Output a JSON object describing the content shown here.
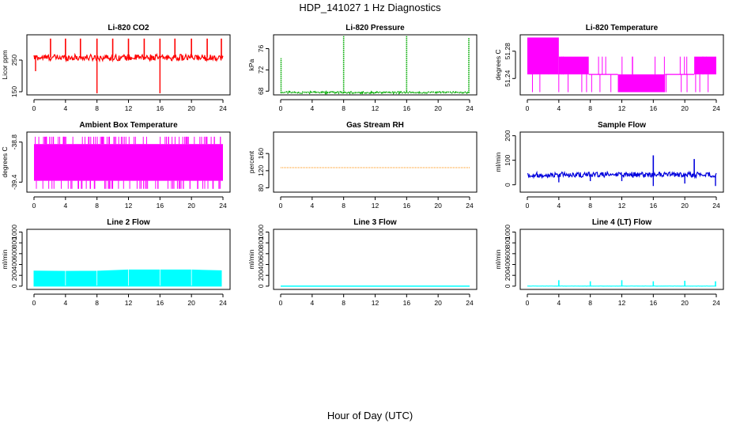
{
  "figure": {
    "title": "HDP_141027  1 Hz Diagnostics",
    "xlabel": "Hour of Day (UTC)"
  },
  "chart_data": [
    {
      "id": "co2",
      "type": "line",
      "title": "Li-820 CO2",
      "ylabel": "Licor ppm",
      "color": "#ff0000",
      "style": "noisy-spikes",
      "x_ticks": [
        "0",
        "4",
        "8",
        "12",
        "16",
        "20",
        "24"
      ],
      "xlim": [
        0,
        24
      ],
      "ylim": [
        140,
        330
      ],
      "y_ticks": [
        150,
        250
      ],
      "y_tick_labels": [
        "150",
        "250"
      ],
      "baseline": 258,
      "noise": [
        248,
        268
      ],
      "spikes_up": [
        [
          2.1,
          318
        ],
        [
          4,
          318
        ],
        [
          5.9,
          318
        ],
        [
          8,
          318
        ],
        [
          10,
          318
        ],
        [
          12,
          318
        ],
        [
          14,
          318
        ],
        [
          16,
          318
        ],
        [
          17.9,
          318
        ],
        [
          20,
          318
        ],
        [
          22,
          318
        ],
        [
          23.8,
          318
        ]
      ],
      "spikes_down": [
        [
          0.2,
          215
        ],
        [
          8,
          145
        ],
        [
          16,
          145
        ]
      ]
    },
    {
      "id": "pressure",
      "type": "line",
      "title": "Li-820 Pressure",
      "ylabel": "kPa",
      "color": "#00aa00",
      "style": "dotted-spikes",
      "x_ticks": [
        "0",
        "4",
        "8",
        "12",
        "16",
        "20",
        "24"
      ],
      "xlim": [
        0,
        24
      ],
      "ylim": [
        67.3,
        78.6
      ],
      "y_ticks": [
        68,
        72,
        76
      ],
      "y_tick_labels": [
        "68",
        "72",
        "76"
      ],
      "baseline": 67.7,
      "noise": [
        67.6,
        67.9
      ],
      "spikes_up": [
        [
          0.05,
          74.2
        ],
        [
          8,
          78.4
        ],
        [
          16,
          78.4
        ],
        [
          23.9,
          78.0
        ]
      ],
      "spikes_down": []
    },
    {
      "id": "li820temp",
      "type": "line",
      "title": "Li-820 Temperature",
      "ylabel": "degrees C",
      "color": "#ff00ff",
      "style": "quantized",
      "x_ticks": [
        "0",
        "4",
        "8",
        "12",
        "16",
        "20",
        "24"
      ],
      "xlim": [
        0,
        24
      ],
      "ylim": [
        51.216,
        51.304
      ],
      "y_ticks": [
        51.24,
        51.28
      ],
      "y_tick_labels": [
        "51.24",
        "51.28"
      ],
      "levels": [
        51.22,
        51.246,
        51.272,
        51.3
      ],
      "segments": [
        {
          "from": 0,
          "to": 4,
          "low": 51.246,
          "high": 51.3
        },
        {
          "from": 4,
          "to": 7.8,
          "low": 51.246,
          "high": 51.272
        },
        {
          "from": 7.8,
          "to": 11.5,
          "low": 51.246,
          "high": 51.246
        },
        {
          "from": 11.5,
          "to": 17.5,
          "low": 51.22,
          "high": 51.246
        },
        {
          "from": 17.5,
          "to": 21.2,
          "low": 51.246,
          "high": 51.246
        },
        {
          "from": 21.2,
          "to": 24,
          "low": 51.246,
          "high": 51.272
        }
      ]
    },
    {
      "id": "ambient",
      "type": "line",
      "title": "Ambient Box Temperature",
      "ylabel": "degrees C",
      "color": "#ff00ff",
      "style": "dense-band",
      "x_ticks": [
        "0",
        "4",
        "8",
        "12",
        "16",
        "20",
        "24"
      ],
      "xlim": [
        0,
        24
      ],
      "ylim": [
        -39.55,
        -38.65
      ],
      "y_ticks": [
        -39.4,
        -38.8
      ],
      "y_tick_labels": [
        "-39.4",
        "-38.8"
      ],
      "band": [
        -39.38,
        -38.83
      ],
      "whiskers": [
        -39.5,
        -38.72
      ]
    },
    {
      "id": "rh",
      "type": "line",
      "title": "Gas Stream RH",
      "ylabel": "percent",
      "color": "#ff8c00",
      "style": "flat",
      "x_ticks": [
        "0",
        "4",
        "8",
        "12",
        "16",
        "20",
        "24"
      ],
      "xlim": [
        0,
        24
      ],
      "ylim": [
        70,
        210
      ],
      "y_ticks": [
        80,
        120,
        160
      ],
      "y_tick_labels": [
        "80",
        "120",
        "160"
      ],
      "baseline": 127
    },
    {
      "id": "sampleflow",
      "type": "line",
      "title": "Sample Flow",
      "ylabel": "ml/min",
      "color": "#0000dd",
      "style": "noisy-spikes",
      "x_ticks": [
        "0",
        "4",
        "8",
        "12",
        "16",
        "20",
        "24"
      ],
      "xlim": [
        0,
        24
      ],
      "ylim": [
        -30,
        215
      ],
      "y_ticks": [
        0,
        100,
        200
      ],
      "y_tick_labels": [
        "0",
        "100",
        "200"
      ],
      "baseline": 40,
      "noise": [
        30,
        52
      ],
      "spikes_up": [
        [
          16,
          120
        ],
        [
          21.2,
          105
        ]
      ],
      "spikes_down": [
        [
          4,
          10
        ],
        [
          8,
          15
        ],
        [
          12,
          15
        ],
        [
          16,
          -5
        ],
        [
          20,
          5
        ],
        [
          23.9,
          -5
        ]
      ]
    },
    {
      "id": "line2",
      "type": "line",
      "title": "Line 2 Flow",
      "ylabel": "ml/min",
      "color": "#00ffff",
      "style": "filled",
      "x_ticks": [
        "0",
        "4",
        "8",
        "12",
        "16",
        "20",
        "24"
      ],
      "xlim": [
        0,
        24
      ],
      "ylim": [
        -60,
        1050
      ],
      "y_ticks": [
        0,
        200,
        400,
        600,
        800,
        1000
      ],
      "y_tick_labels": [
        "0",
        "200",
        "400",
        "600",
        "800",
        "1000"
      ],
      "fill_top": [
        [
          0,
          280
        ],
        [
          4,
          275
        ],
        [
          8,
          278
        ],
        [
          12,
          300
        ],
        [
          16,
          300
        ],
        [
          20,
          300
        ],
        [
          23.8,
          285
        ]
      ]
    },
    {
      "id": "line3",
      "type": "line",
      "title": "Line 3 Flow",
      "ylabel": "ml/min",
      "color": "#00ffff",
      "style": "flat",
      "x_ticks": [
        "0",
        "4",
        "8",
        "12",
        "16",
        "20",
        "24"
      ],
      "xlim": [
        0,
        24
      ],
      "ylim": [
        -60,
        1050
      ],
      "y_ticks": [
        0,
        200,
        400,
        600,
        800,
        1000
      ],
      "y_tick_labels": [
        "0",
        "200",
        "400",
        "600",
        "800",
        "1000"
      ],
      "baseline": 0
    },
    {
      "id": "line4",
      "type": "line",
      "title": "Line 4 (LT) Flow",
      "ylabel": "ml/min",
      "color": "#00ffff",
      "style": "noisy-spikes",
      "x_ticks": [
        "0",
        "4",
        "8",
        "12",
        "16",
        "20",
        "24"
      ],
      "xlim": [
        0,
        24
      ],
      "ylim": [
        -60,
        1050
      ],
      "y_ticks": [
        0,
        200,
        400,
        600,
        800,
        1000
      ],
      "y_tick_labels": [
        "0",
        "200",
        "400",
        "600",
        "800",
        "1000"
      ],
      "baseline": 0,
      "noise": [
        0,
        3
      ],
      "spikes_up": [
        [
          4,
          110
        ],
        [
          8,
          90
        ],
        [
          12,
          110
        ],
        [
          16,
          90
        ],
        [
          20,
          100
        ],
        [
          23.9,
          90
        ]
      ],
      "spikes_down": []
    }
  ]
}
